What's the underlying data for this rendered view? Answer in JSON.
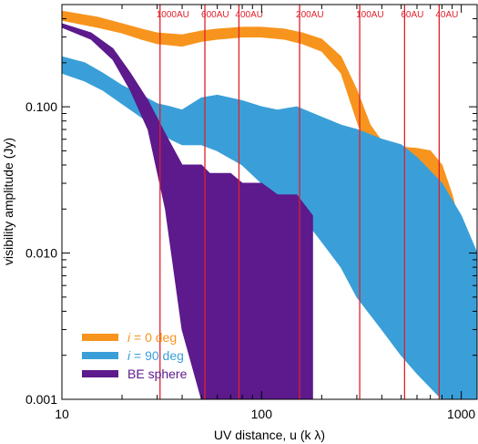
{
  "chart_data": {
    "type": "line",
    "title": "",
    "xlabel": "UV distance,  u      (k λ)",
    "ylabel": "visibility amplitude (Jy)",
    "xscale": "log",
    "yscale": "log",
    "xlim": [
      10,
      1200
    ],
    "ylim": [
      0.001,
      0.5
    ],
    "grid": false,
    "legend_position": "bottom-left",
    "xticks": [
      {
        "value": 10,
        "label": "10"
      },
      {
        "value": 100,
        "label": "100"
      },
      {
        "value": 1000,
        "label": "1000"
      }
    ],
    "yticks": [
      {
        "value": 0.001,
        "label": "0.001"
      },
      {
        "value": 0.01,
        "label": "0.010"
      },
      {
        "value": 0.1,
        "label": "0.100"
      }
    ],
    "reference_lines": [
      {
        "x": 31,
        "label": "1000AU"
      },
      {
        "x": 52,
        "label": "600AU"
      },
      {
        "x": 77,
        "label": "400AU"
      },
      {
        "x": 155,
        "label": "200AU"
      },
      {
        "x": 310,
        "label": "100AU"
      },
      {
        "x": 520,
        "label": "60AU"
      },
      {
        "x": 775,
        "label": "40AU"
      }
    ],
    "series": [
      {
        "label_prefix": "i",
        "label_suffix": " =  0 deg",
        "color": "#f7941d",
        "style": "band",
        "x": [
          10,
          15,
          20,
          25,
          30,
          40,
          50,
          60,
          80,
          100,
          130,
          160,
          200,
          250,
          300,
          350,
          400,
          500,
          600,
          700,
          800,
          900,
          1000,
          1100,
          1200
        ],
        "upper": [
          0.45,
          0.41,
          0.37,
          0.34,
          0.32,
          0.31,
          0.33,
          0.34,
          0.35,
          0.35,
          0.34,
          0.32,
          0.29,
          0.22,
          0.13,
          0.075,
          0.058,
          0.053,
          0.052,
          0.05,
          0.04,
          0.025,
          0.014,
          0.009,
          0.007
        ],
        "lower": [
          0.39,
          0.35,
          0.32,
          0.29,
          0.27,
          0.26,
          0.28,
          0.29,
          0.3,
          0.3,
          0.29,
          0.27,
          0.24,
          0.17,
          0.08,
          0.045,
          0.038,
          0.035,
          0.035,
          0.01,
          0.005,
          0.002,
          0.001,
          0.001,
          0.001
        ]
      },
      {
        "label_prefix": "i",
        "label_suffix": " =  90 deg",
        "color": "#3a9fd8",
        "style": "band",
        "x": [
          10,
          13,
          16,
          20,
          25,
          30,
          35,
          40,
          50,
          60,
          80,
          100,
          120,
          150,
          200,
          250,
          300,
          400,
          500,
          600,
          800,
          1000,
          1200
        ],
        "upper": [
          0.22,
          0.2,
          0.17,
          0.14,
          0.12,
          0.105,
          0.1,
          0.095,
          0.115,
          0.12,
          0.11,
          0.1,
          0.095,
          0.1,
          0.085,
          0.075,
          0.07,
          0.06,
          0.055,
          0.045,
          0.03,
          0.018,
          0.01
        ],
        "lower": [
          0.17,
          0.15,
          0.13,
          0.105,
          0.085,
          0.07,
          0.06,
          0.055,
          0.055,
          0.05,
          0.04,
          0.03,
          0.025,
          0.02,
          0.012,
          0.008,
          0.005,
          0.003,
          0.002,
          0.0015,
          0.001,
          0.001,
          0.001
        ]
      },
      {
        "label": "BE sphere",
        "color": "#5c1a8c",
        "style": "band",
        "x": [
          10,
          14,
          18,
          22,
          27,
          33,
          40,
          50,
          55,
          70,
          80,
          100,
          120,
          150,
          180
        ],
        "upper": [
          0.37,
          0.32,
          0.25,
          0.17,
          0.11,
          0.065,
          0.04,
          0.04,
          0.035,
          0.035,
          0.03,
          0.03,
          0.025,
          0.025,
          0.018
        ],
        "lower": [
          0.35,
          0.29,
          0.21,
          0.13,
          0.07,
          0.02,
          0.003,
          0.001,
          0.001,
          0.001,
          0.001,
          0.001,
          0.001,
          0.001,
          0.001
        ]
      }
    ]
  }
}
